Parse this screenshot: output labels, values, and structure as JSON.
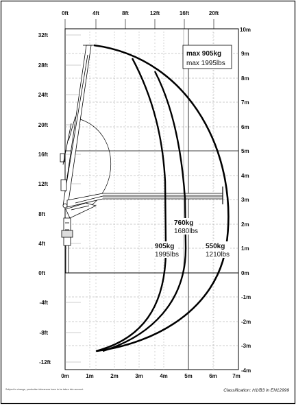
{
  "diagram": {
    "top_ft_labels": [
      "0ft",
      "4ft",
      "8ft",
      "12ft",
      "16ft",
      "20ft"
    ],
    "left_ft_labels": [
      "32ft",
      "28ft",
      "24ft",
      "20ft",
      "16ft",
      "12ft",
      "8ft",
      "4ft",
      "0ft",
      "-4ft",
      "-8ft",
      "-12ft"
    ],
    "right_m_labels": [
      "10m",
      "9m",
      "8m",
      "7m",
      "6m",
      "5m",
      "4m",
      "3m",
      "2m",
      "1m",
      "0m",
      "-1m",
      "-2m",
      "-3m",
      "-4m"
    ],
    "bottom_m_labels": [
      "0m",
      "1m",
      "2m",
      "3m",
      "4m",
      "5m",
      "6m",
      "7m"
    ],
    "max_box": {
      "kg": "max 905kg",
      "lbs": "max 1995lbs"
    },
    "zones": [
      {
        "kg": "905kg",
        "lbs": "1995lbs"
      },
      {
        "kg": "760kg",
        "lbs": "1680lbs"
      },
      {
        "kg": "550kg",
        "lbs": "1210lbs"
      }
    ],
    "footer_note": "Subject to change, production tolerances have to be taken into account.",
    "classification": "Classification: H1/B3 in EN12999"
  }
}
